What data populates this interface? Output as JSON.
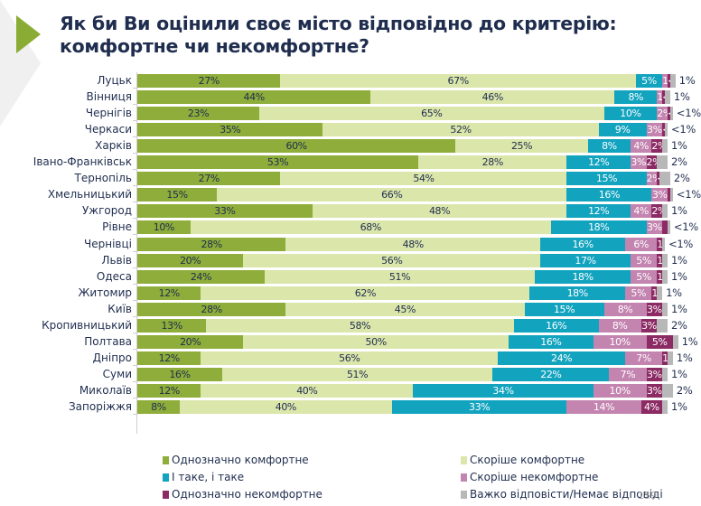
{
  "title": "Як би Ви оцінили своє місто відповідно до критерію: комфортне чи некомфортне?",
  "page_number": "159",
  "colors": {
    "definitely_comfortable": "#8ead3a",
    "rather_comfortable": "#dbe6ab",
    "neither": "#12a3bf",
    "rather_uncomfortable": "#c384b0",
    "definitely_uncomfortable": "#8b2a63",
    "hard_to_say": "#b8b8b8"
  },
  "chart_data": {
    "type": "bar",
    "orientation": "horizontal",
    "stacked": true,
    "title": "Як би Ви оцінили своє місто відповідно до критерію: комфортне чи некомфортне?",
    "xlabel": "",
    "ylabel": "",
    "xlim": [
      0,
      100
    ],
    "unit": "%",
    "legend_position": "bottom",
    "grid": false,
    "categories": [
      "Луцьк",
      "Вінниця",
      "Чернігів",
      "Черкаси",
      "Харків",
      "Івано-Франківськ",
      "Тернопіль",
      "Хмельницький",
      "Ужгород",
      "Рівне",
      "Чернівці",
      "Львів",
      "Одеса",
      "Житомир",
      "Київ",
      "Кропивницький",
      "Полтава",
      "Дніпро",
      "Суми",
      "Миколаїв",
      "Запоріжжя"
    ],
    "series": [
      {
        "name": "Однозначно комфортне",
        "key": "definitely_comfortable",
        "values": [
          27,
          44,
          23,
          35,
          60,
          53,
          27,
          15,
          33,
          10,
          28,
          20,
          24,
          12,
          28,
          13,
          20,
          12,
          16,
          12,
          8
        ],
        "labels": [
          "27%",
          "44%",
          "23%",
          "35%",
          "60%",
          "53%",
          "27%",
          "15%",
          "33%",
          "10%",
          "28%",
          "20%",
          "24%",
          "12%",
          "28%",
          "13%",
          "20%",
          "12%",
          "16%",
          "12%",
          "8%"
        ]
      },
      {
        "name": "Скоріше комфортне",
        "key": "rather_comfortable",
        "values": [
          67,
          46,
          65,
          52,
          25,
          28,
          54,
          66,
          48,
          68,
          48,
          56,
          51,
          62,
          45,
          58,
          50,
          56,
          51,
          40,
          40
        ],
        "labels": [
          "67%",
          "46%",
          "65%",
          "52%",
          "25%",
          "28%",
          "54%",
          "66%",
          "48%",
          "68%",
          "48%",
          "56%",
          "51%",
          "62%",
          "45%",
          "58%",
          "50%",
          "56%",
          "51%",
          "40%",
          "40%"
        ]
      },
      {
        "name": "І таке, і таке",
        "key": "neither",
        "values": [
          5,
          8,
          10,
          9,
          8,
          12,
          15,
          16,
          12,
          18,
          16,
          17,
          18,
          18,
          15,
          16,
          16,
          24,
          22,
          34,
          33
        ],
        "labels": [
          "5%",
          "8%",
          "10%",
          "9%",
          "8%",
          "12%",
          "15%",
          "16%",
          "12%",
          "18%",
          "16%",
          "17%",
          "18%",
          "18%",
          "15%",
          "16%",
          "16%",
          "24%",
          "22%",
          "34%",
          "33%"
        ]
      },
      {
        "name": "Скоріше некомфортне",
        "key": "rather_uncomfortable",
        "values": [
          1,
          1,
          2,
          3,
          4,
          3,
          2,
          3,
          4,
          3,
          6,
          5,
          5,
          5,
          8,
          8,
          10,
          7,
          7,
          10,
          14
        ],
        "labels": [
          "1%",
          "1%",
          "2%",
          "3%",
          "4%",
          "3%",
          "2%",
          "3%",
          "4%",
          "3%",
          "6%",
          "5%",
          "5%",
          "5%",
          "8%",
          "8%",
          "10%",
          "7%",
          "7%",
          "10%",
          "14%"
        ]
      },
      {
        "name": "Однозначно некомфортне",
        "key": "definitely_uncomfortable",
        "values": [
          0.5,
          0.5,
          0.5,
          0.5,
          2,
          2,
          0.5,
          0.5,
          2,
          1,
          1,
          1,
          1,
          1,
          3,
          3,
          5,
          1,
          3,
          3,
          4
        ],
        "labels": [
          "<1%",
          "<1%",
          "<1%",
          "<1%",
          "2%",
          "2%",
          "<1%",
          "",
          "2%",
          "",
          "1%",
          "1%",
          "1%",
          "1%",
          "3%",
          "3%",
          "5%",
          "1%",
          "3%",
          "3%",
          "4%"
        ]
      },
      {
        "name": "Важко відповісти/Немає відповіді",
        "key": "hard_to_say",
        "values": [
          1,
          1,
          0.5,
          0.5,
          1,
          2,
          2,
          0.5,
          1,
          0.5,
          0.5,
          1,
          1,
          1,
          1,
          2,
          1,
          1,
          1,
          2,
          1
        ],
        "labels": [
          "1%",
          "1%",
          "<1%",
          "<1%",
          "1%",
          "2%",
          "2%",
          "<1%",
          "1%",
          "<1%",
          "<1%",
          "1%",
          "1%",
          "1%",
          "1%",
          "2%",
          "1%",
          "1%",
          "1%",
          "2%",
          "1%"
        ]
      }
    ]
  },
  "legend": [
    {
      "label": "Однозначно комфортне",
      "key": "definitely_comfortable"
    },
    {
      "label": "Скоріше комфортне",
      "key": "rather_comfortable"
    },
    {
      "label": "І таке, і таке",
      "key": "neither"
    },
    {
      "label": "Скоріше некомфортне",
      "key": "rather_uncomfortable"
    },
    {
      "label": "Однозначно некомфортне",
      "key": "definitely_uncomfortable"
    },
    {
      "label": "Важко відповісти/Немає відповіді",
      "key": "hard_to_say"
    }
  ]
}
